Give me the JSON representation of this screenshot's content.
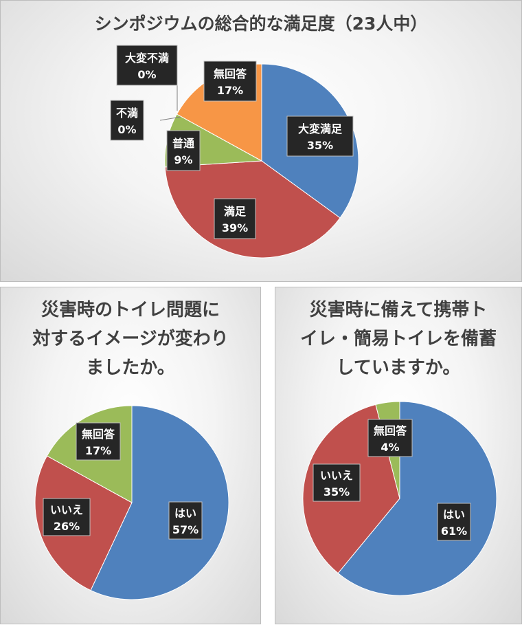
{
  "chart_data": [
    {
      "type": "pie",
      "title": "シンポジウムの総合的な満足度（23人中）",
      "slices": [
        {
          "label": "大変満足",
          "value": 35,
          "display": "35%",
          "color": "#4f81bd"
        },
        {
          "label": "満足",
          "value": 39,
          "display": "39%",
          "color": "#c0504d"
        },
        {
          "label": "普通",
          "value": 9,
          "display": "9%",
          "color": "#9bbb59"
        },
        {
          "label": "不満",
          "value": 0,
          "display": "0%",
          "color": "#8064a2"
        },
        {
          "label": "大変不満",
          "value": 0,
          "display": "0%",
          "color": "#4bacc6"
        },
        {
          "label": "無回答",
          "value": 17,
          "display": "17%",
          "color": "#f79646"
        }
      ]
    },
    {
      "type": "pie",
      "title": "災害時のトイレ問題に\n対するイメージが変わり\nましたか。",
      "slices": [
        {
          "label": "はい",
          "value": 57,
          "display": "57%",
          "color": "#4f81bd"
        },
        {
          "label": "いいえ",
          "value": 26,
          "display": "26%",
          "color": "#c0504d"
        },
        {
          "label": "無回答",
          "value": 17,
          "display": "17%",
          "color": "#9bbb59"
        }
      ]
    },
    {
      "type": "pie",
      "title": "災害時に備えて携帯ト\nイレ・簡易トイレを備蓄\nしていますか。",
      "slices": [
        {
          "label": "はい",
          "value": 61,
          "display": "61%",
          "color": "#4f81bd"
        },
        {
          "label": "いいえ",
          "value": 35,
          "display": "35%",
          "color": "#c0504d"
        },
        {
          "label": "無回答",
          "value": 4,
          "display": "4%",
          "color": "#9bbb59"
        }
      ]
    }
  ]
}
